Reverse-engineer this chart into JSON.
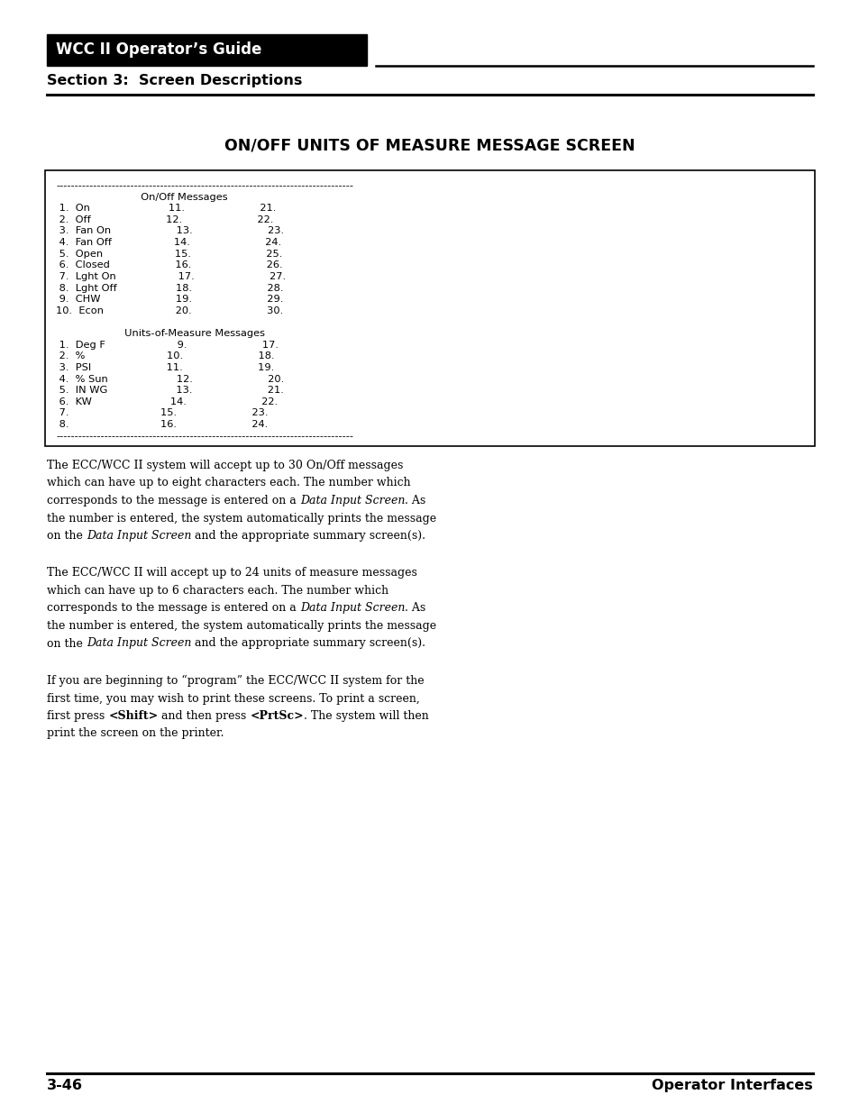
{
  "page_width": 9.54,
  "page_height": 12.35,
  "dpi": 100,
  "bg_color": "#ffffff",
  "header_bar_color": "#000000",
  "header_text": "WCC II Operator’s Guide",
  "header_text_color": "#ffffff",
  "section_text": "Section 3:  Screen Descriptions",
  "main_title": "ON/OFF UNITS OF MEASURE MESSAGE SCREEN",
  "screen_lines": [
    "--------------------------------------------------------------------------------",
    "                          On/Off Messages",
    " 1.  On                        11.                       21.",
    " 2.  Off                       12.                       22.",
    " 3.  Fan On                    13.                       23.",
    " 4.  Fan Off                   14.                       24.",
    " 5.  Open                      15.                       25.",
    " 6.  Closed                    16.                       26.",
    " 7.  Lght On                   17.                       27.",
    " 8.  Lght Off                  18.                       28.",
    " 9.  CHW                       19.                       29.",
    "10.  Econ                      20.                       30.",
    "",
    "                     Units-of-Measure Messages",
    " 1.  Deg F                      9.                       17.",
    " 2.  %                         10.                       18.",
    " 3.  PSI                       11.                       19.",
    " 4.  % Sun                     12.                       20.",
    " 5.  IN WG                     13.                       21.",
    " 6.  KW                        14.                       22.",
    " 7.                            15.                       23.",
    " 8.                            16.                       24.",
    "--------------------------------------------------------------------------------"
  ],
  "p1_lines": [
    [
      "The ECC/WCC II system will accept up to 30 On/Off messages",
      "normal"
    ],
    [
      "which can have up to eight characters each. The number which",
      "normal"
    ],
    [
      "corresponds to the message is entered on a ",
      "normal",
      "Data Input Screen",
      "italic",
      ". As",
      "normal"
    ],
    [
      "the number is entered, the system automatically prints the message",
      "normal"
    ],
    [
      "on the ",
      "normal",
      "Data Input Screen",
      "italic",
      " and the appropriate summary screen(s).",
      "normal"
    ]
  ],
  "p2_lines": [
    [
      "The ECC/WCC II will accept up to 24 units of measure messages",
      "normal"
    ],
    [
      "which can have up to 6 characters each. The number which",
      "normal"
    ],
    [
      "corresponds to the message is entered on a ",
      "normal",
      "Data Input Screen",
      "italic",
      ". As",
      "normal"
    ],
    [
      "the number is entered, the system automatically prints the message",
      "normal"
    ],
    [
      "on the ",
      "normal",
      "Data Input Screen",
      "italic",
      " and the appropriate summary screen(s).",
      "normal"
    ]
  ],
  "p3_lines": [
    [
      "If you are beginning to “program” the ECC/WCC II system for the",
      "normal"
    ],
    [
      "first time, you may wish to print these screens. To print a screen,",
      "normal"
    ],
    [
      "first press ",
      "normal",
      "<Shift>",
      "bold",
      " and then press ",
      "normal",
      "<PrtSc>",
      "bold",
      ". The system will then",
      "normal"
    ],
    [
      "print the screen on the printer.",
      "normal"
    ]
  ],
  "footer_left": "3-46",
  "footer_right": "Operator Interfaces"
}
